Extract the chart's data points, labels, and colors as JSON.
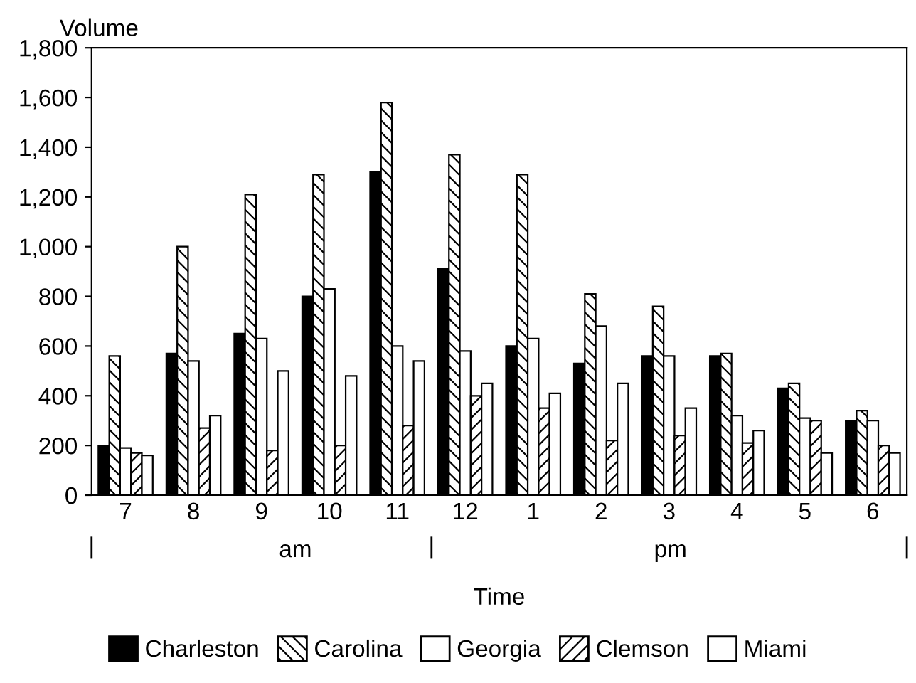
{
  "chart_data": {
    "type": "bar",
    "xlabel": "Time",
    "ylabel": "Volume",
    "categories": [
      "7",
      "8",
      "9",
      "10",
      "11",
      "12",
      "1",
      "2",
      "3",
      "4",
      "5",
      "6"
    ],
    "series": [
      {
        "name": "Charleston",
        "color": "#000000",
        "values": [
          200,
          570,
          650,
          800,
          1300,
          910,
          600,
          530,
          560,
          560,
          430,
          300
        ]
      },
      {
        "name": "Carolina",
        "color": "#000000",
        "values": [
          560,
          1000,
          1210,
          1290,
          1580,
          1370,
          1290,
          810,
          760,
          570,
          450,
          340
        ]
      },
      {
        "name": "Georgia",
        "color": "#ffffff",
        "values": [
          190,
          540,
          630,
          830,
          600,
          580,
          630,
          680,
          560,
          320,
          310,
          300
        ]
      },
      {
        "name": "Clemson",
        "color": "#000000",
        "values": [
          170,
          270,
          180,
          200,
          280,
          400,
          350,
          220,
          240,
          210,
          300,
          200
        ]
      },
      {
        "name": "Miami",
        "color": "#ffffff",
        "values": [
          160,
          320,
          500,
          480,
          540,
          450,
          410,
          450,
          350,
          260,
          170,
          170
        ]
      }
    ],
    "ylim": [
      0,
      1800
    ],
    "yticks": [
      0,
      200,
      400,
      600,
      800,
      {
        "value": 1000,
        "label": "1,000"
      },
      {
        "value": 1200,
        "label": "1,200"
      },
      {
        "value": 1400,
        "label": "1,400"
      },
      {
        "value": 1600,
        "label": "1,600"
      },
      {
        "value": 1800,
        "label": "1,800"
      }
    ],
    "annotations": [
      "am",
      "pm"
    ],
    "grid": false,
    "legend": "bottom"
  }
}
